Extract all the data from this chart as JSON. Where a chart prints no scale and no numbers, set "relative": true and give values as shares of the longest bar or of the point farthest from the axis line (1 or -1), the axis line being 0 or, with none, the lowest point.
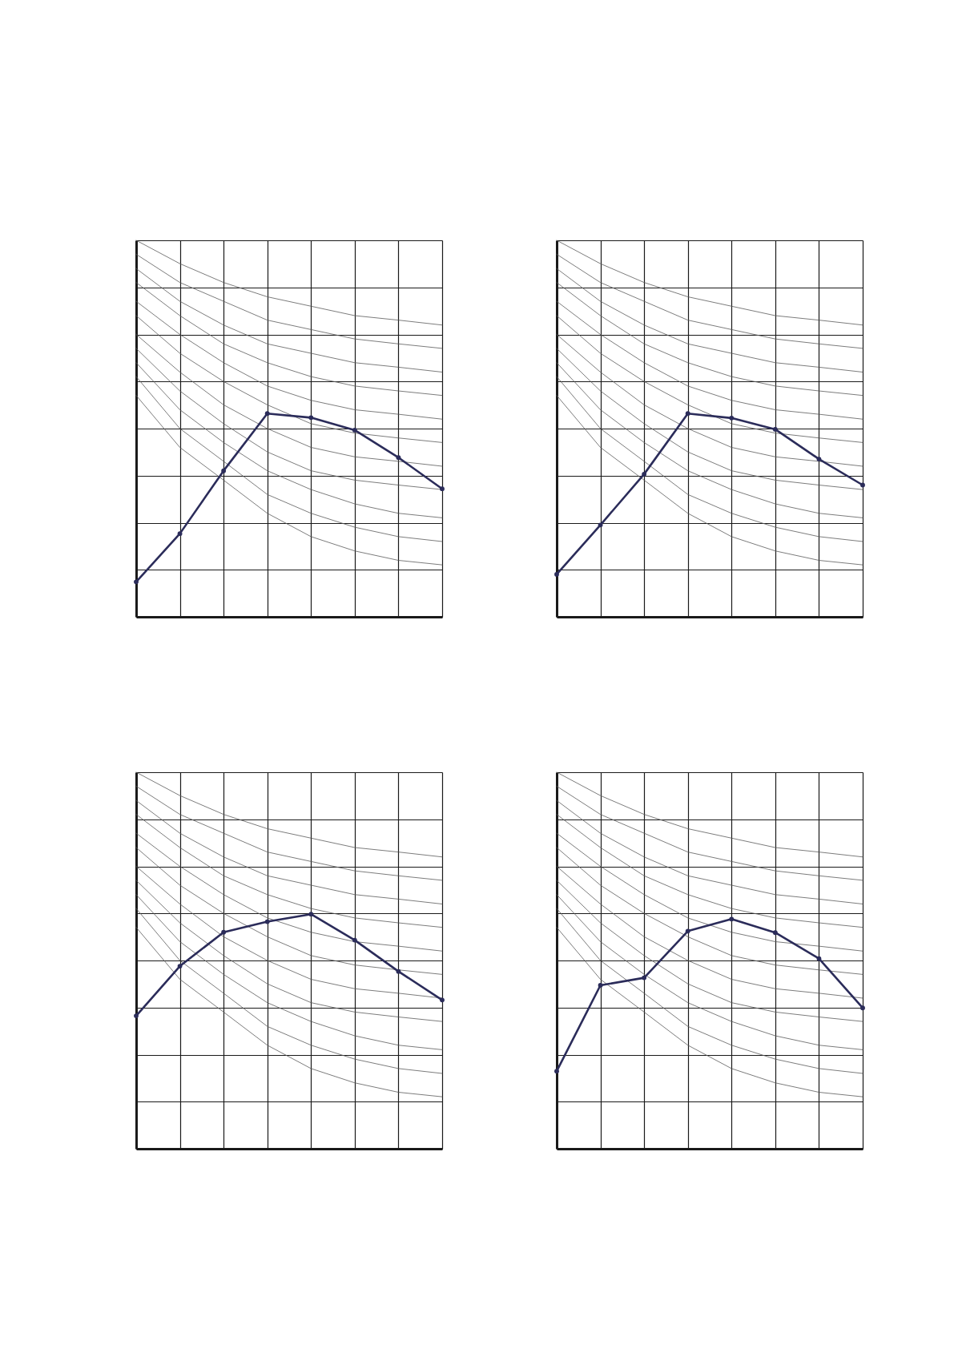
{
  "chart_data": [
    {
      "type": "line",
      "relative": true,
      "grid": true,
      "tick_labels": false,
      "categories": [
        null,
        null,
        null,
        null,
        null,
        null,
        null,
        null
      ],
      "series": [
        {
          "color": "#5a5a5a",
          "marker": "none",
          "values": [
            0.588,
            0.45,
            0.363,
            0.275,
            0.213,
            0.175,
            0.15,
            0.138
          ]
        },
        {
          "color": "#5a5a5a",
          "marker": "none",
          "values": [
            0.638,
            0.5,
            0.413,
            0.325,
            0.275,
            0.238,
            0.213,
            0.2
          ]
        },
        {
          "color": "#5a5a5a",
          "marker": "none",
          "values": [
            0.675,
            0.55,
            0.463,
            0.388,
            0.338,
            0.3,
            0.275,
            0.263
          ]
        },
        {
          "color": "#5a5a5a",
          "marker": "none",
          "values": [
            0.713,
            0.6,
            0.513,
            0.438,
            0.388,
            0.363,
            0.35,
            0.338
          ]
        },
        {
          "color": "#5a5a5a",
          "marker": "none",
          "values": [
            0.75,
            0.65,
            0.563,
            0.5,
            0.45,
            0.425,
            0.413,
            0.4
          ]
        },
        {
          "color": "#5a5a5a",
          "marker": "none",
          "values": [
            0.8,
            0.7,
            0.625,
            0.563,
            0.513,
            0.488,
            0.475,
            0.463
          ]
        },
        {
          "color": "#5a5a5a",
          "marker": "none",
          "values": [
            0.838,
            0.75,
            0.675,
            0.613,
            0.575,
            0.55,
            0.538,
            0.525
          ]
        },
        {
          "color": "#5a5a5a",
          "marker": "none",
          "values": [
            0.888,
            0.8,
            0.725,
            0.675,
            0.638,
            0.613,
            0.6,
            0.588
          ]
        },
        {
          "color": "#5a5a5a",
          "marker": "none",
          "values": [
            0.925,
            0.838,
            0.775,
            0.725,
            0.7,
            0.675,
            0.663,
            0.65
          ]
        },
        {
          "color": "#5a5a5a",
          "marker": "none",
          "values": [
            0.963,
            0.888,
            0.838,
            0.788,
            0.763,
            0.738,
            0.725,
            0.713
          ]
        },
        {
          "color": "#5a5a5a",
          "marker": "none",
          "values": [
            1.0,
            0.938,
            0.888,
            0.85,
            0.825,
            0.8,
            0.788,
            0.775
          ]
        },
        {
          "color": "#2b2c5a",
          "marker": "circle",
          "values": [
            0.093,
            0.221,
            0.388,
            0.54,
            0.529,
            0.496,
            0.423,
            0.34
          ]
        }
      ]
    },
    {
      "type": "line",
      "relative": true,
      "grid": true,
      "tick_labels": false,
      "categories": [
        null,
        null,
        null,
        null,
        null,
        null,
        null,
        null
      ],
      "series": [
        {
          "color": "#5a5a5a",
          "marker": "none",
          "values": [
            0.588,
            0.45,
            0.363,
            0.275,
            0.213,
            0.175,
            0.15,
            0.138
          ]
        },
        {
          "color": "#5a5a5a",
          "marker": "none",
          "values": [
            0.638,
            0.5,
            0.413,
            0.325,
            0.275,
            0.238,
            0.213,
            0.2
          ]
        },
        {
          "color": "#5a5a5a",
          "marker": "none",
          "values": [
            0.675,
            0.55,
            0.463,
            0.388,
            0.338,
            0.3,
            0.275,
            0.263
          ]
        },
        {
          "color": "#5a5a5a",
          "marker": "none",
          "values": [
            0.713,
            0.6,
            0.513,
            0.438,
            0.388,
            0.363,
            0.35,
            0.338
          ]
        },
        {
          "color": "#5a5a5a",
          "marker": "none",
          "values": [
            0.75,
            0.65,
            0.563,
            0.5,
            0.45,
            0.425,
            0.413,
            0.4
          ]
        },
        {
          "color": "#5a5a5a",
          "marker": "none",
          "values": [
            0.8,
            0.7,
            0.625,
            0.563,
            0.513,
            0.488,
            0.475,
            0.463
          ]
        },
        {
          "color": "#5a5a5a",
          "marker": "none",
          "values": [
            0.838,
            0.75,
            0.675,
            0.613,
            0.575,
            0.55,
            0.538,
            0.525
          ]
        },
        {
          "color": "#5a5a5a",
          "marker": "none",
          "values": [
            0.888,
            0.8,
            0.725,
            0.675,
            0.638,
            0.613,
            0.6,
            0.588
          ]
        },
        {
          "color": "#5a5a5a",
          "marker": "none",
          "values": [
            0.925,
            0.838,
            0.775,
            0.725,
            0.7,
            0.675,
            0.663,
            0.65
          ]
        },
        {
          "color": "#5a5a5a",
          "marker": "none",
          "values": [
            0.963,
            0.888,
            0.838,
            0.788,
            0.763,
            0.738,
            0.725,
            0.713
          ]
        },
        {
          "color": "#5a5a5a",
          "marker": "none",
          "values": [
            1.0,
            0.938,
            0.888,
            0.85,
            0.825,
            0.8,
            0.788,
            0.775
          ]
        },
        {
          "color": "#2b2c5a",
          "marker": "circle",
          "values": [
            0.113,
            0.244,
            0.379,
            0.54,
            0.528,
            0.498,
            0.419,
            0.35
          ]
        }
      ]
    },
    {
      "type": "line",
      "relative": true,
      "grid": true,
      "tick_labels": false,
      "categories": [
        null,
        null,
        null,
        null,
        null,
        null,
        null,
        null
      ],
      "series": [
        {
          "color": "#5a5a5a",
          "marker": "none",
          "values": [
            0.588,
            0.45,
            0.363,
            0.275,
            0.213,
            0.175,
            0.15,
            0.138
          ]
        },
        {
          "color": "#5a5a5a",
          "marker": "none",
          "values": [
            0.638,
            0.5,
            0.413,
            0.325,
            0.275,
            0.238,
            0.213,
            0.2
          ]
        },
        {
          "color": "#5a5a5a",
          "marker": "none",
          "values": [
            0.675,
            0.55,
            0.463,
            0.388,
            0.338,
            0.3,
            0.275,
            0.263
          ]
        },
        {
          "color": "#5a5a5a",
          "marker": "none",
          "values": [
            0.713,
            0.6,
            0.513,
            0.438,
            0.388,
            0.363,
            0.35,
            0.338
          ]
        },
        {
          "color": "#5a5a5a",
          "marker": "none",
          "values": [
            0.75,
            0.65,
            0.563,
            0.5,
            0.45,
            0.425,
            0.413,
            0.4
          ]
        },
        {
          "color": "#5a5a5a",
          "marker": "none",
          "values": [
            0.8,
            0.7,
            0.625,
            0.563,
            0.513,
            0.488,
            0.475,
            0.463
          ]
        },
        {
          "color": "#5a5a5a",
          "marker": "none",
          "values": [
            0.838,
            0.75,
            0.675,
            0.613,
            0.575,
            0.55,
            0.538,
            0.525
          ]
        },
        {
          "color": "#5a5a5a",
          "marker": "none",
          "values": [
            0.888,
            0.8,
            0.725,
            0.675,
            0.638,
            0.613,
            0.6,
            0.588
          ]
        },
        {
          "color": "#5a5a5a",
          "marker": "none",
          "values": [
            0.925,
            0.838,
            0.775,
            0.725,
            0.7,
            0.675,
            0.663,
            0.65
          ]
        },
        {
          "color": "#5a5a5a",
          "marker": "none",
          "values": [
            0.963,
            0.888,
            0.838,
            0.788,
            0.763,
            0.738,
            0.725,
            0.713
          ]
        },
        {
          "color": "#5a5a5a",
          "marker": "none",
          "values": [
            1.0,
            0.938,
            0.888,
            0.85,
            0.825,
            0.8,
            0.788,
            0.775
          ]
        },
        {
          "color": "#2b2c5a",
          "marker": "circle",
          "values": [
            0.353,
            0.485,
            0.575,
            0.603,
            0.623,
            0.554,
            0.471,
            0.395
          ]
        }
      ]
    },
    {
      "type": "line",
      "relative": true,
      "grid": true,
      "tick_labels": false,
      "categories": [
        null,
        null,
        null,
        null,
        null,
        null,
        null,
        null
      ],
      "series": [
        {
          "color": "#5a5a5a",
          "marker": "none",
          "values": [
            0.588,
            0.45,
            0.363,
            0.275,
            0.213,
            0.175,
            0.15,
            0.138
          ]
        },
        {
          "color": "#5a5a5a",
          "marker": "none",
          "values": [
            0.638,
            0.5,
            0.413,
            0.325,
            0.275,
            0.238,
            0.213,
            0.2
          ]
        },
        {
          "color": "#5a5a5a",
          "marker": "none",
          "values": [
            0.675,
            0.55,
            0.463,
            0.388,
            0.338,
            0.3,
            0.275,
            0.263
          ]
        },
        {
          "color": "#5a5a5a",
          "marker": "none",
          "values": [
            0.713,
            0.6,
            0.513,
            0.438,
            0.388,
            0.363,
            0.35,
            0.338
          ]
        },
        {
          "color": "#5a5a5a",
          "marker": "none",
          "values": [
            0.75,
            0.65,
            0.563,
            0.5,
            0.45,
            0.425,
            0.413,
            0.4
          ]
        },
        {
          "color": "#5a5a5a",
          "marker": "none",
          "values": [
            0.8,
            0.7,
            0.625,
            0.563,
            0.513,
            0.488,
            0.475,
            0.463
          ]
        },
        {
          "color": "#5a5a5a",
          "marker": "none",
          "values": [
            0.838,
            0.75,
            0.675,
            0.613,
            0.575,
            0.55,
            0.538,
            0.525
          ]
        },
        {
          "color": "#5a5a5a",
          "marker": "none",
          "values": [
            0.888,
            0.8,
            0.725,
            0.675,
            0.638,
            0.613,
            0.6,
            0.588
          ]
        },
        {
          "color": "#5a5a5a",
          "marker": "none",
          "values": [
            0.925,
            0.838,
            0.775,
            0.725,
            0.7,
            0.675,
            0.663,
            0.65
          ]
        },
        {
          "color": "#5a5a5a",
          "marker": "none",
          "values": [
            0.963,
            0.888,
            0.838,
            0.788,
            0.763,
            0.738,
            0.725,
            0.713
          ]
        },
        {
          "color": "#5a5a5a",
          "marker": "none",
          "values": [
            1.0,
            0.938,
            0.888,
            0.85,
            0.825,
            0.8,
            0.788,
            0.775
          ]
        },
        {
          "color": "#2b2c5a",
          "marker": "circle",
          "values": [
            0.206,
            0.434,
            0.454,
            0.578,
            0.61,
            0.574,
            0.505,
            0.374
          ]
        }
      ]
    }
  ]
}
